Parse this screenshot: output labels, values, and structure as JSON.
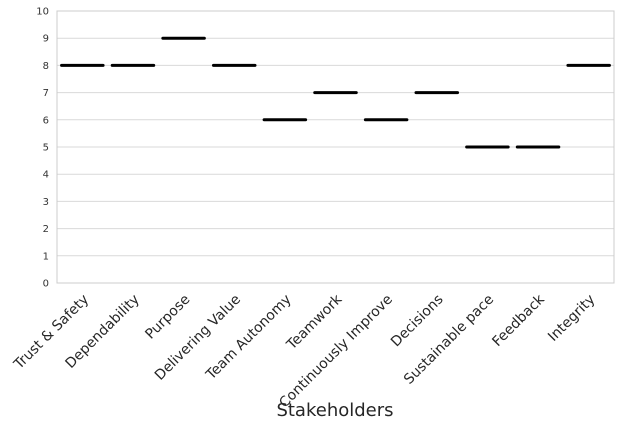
{
  "chart_data": {
    "type": "scatter",
    "marker": "horizontal-line",
    "title": "",
    "xlabel": "Stakeholders",
    "ylabel": "",
    "categories": [
      "Trust & Safety",
      "Dependability",
      "Purpose",
      "Delivering Value",
      "Team Autonomy",
      "Teamwork",
      "Continuously Improve",
      "Decisions",
      "Sustainable pace",
      "Feedback",
      "Integrity"
    ],
    "values": [
      8,
      8,
      9,
      8,
      6,
      7,
      6,
      7,
      5,
      5,
      8
    ],
    "ylim": [
      0,
      10
    ],
    "yticks": [
      0,
      1,
      2,
      3,
      4,
      5,
      6,
      7,
      8,
      9,
      10
    ],
    "grid": "horizontal",
    "legend": "none",
    "colors": {
      "marker": "#000000",
      "grid": "#d9d9d9",
      "frame": "#cccccc",
      "background": "#ffffff"
    }
  }
}
